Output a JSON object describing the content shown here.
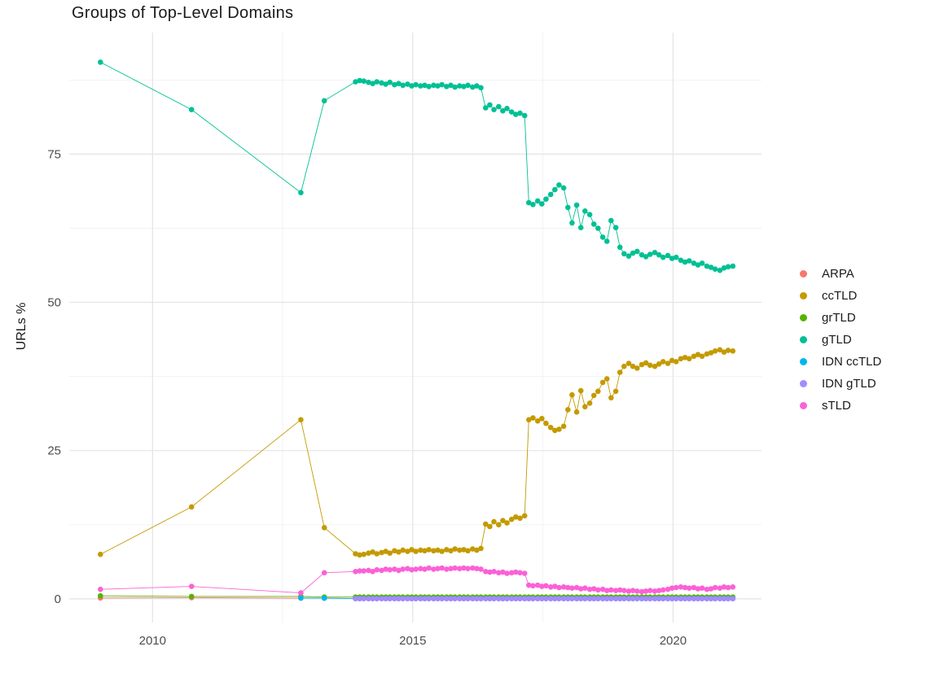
{
  "chart_data": {
    "type": "line",
    "title": "Groups of Top-Level Domains",
    "xlabel": "",
    "ylabel": "URLs %",
    "xlim": [
      2008.4,
      2021.7
    ],
    "ylim": [
      -4,
      95.5
    ],
    "xticks": [
      2010,
      2015,
      2020
    ],
    "yticks": [
      0,
      25,
      50,
      75
    ],
    "xticks_minor": [
      2012.5,
      2017.5
    ],
    "yticks_minor": [
      12.5,
      37.5,
      62.5,
      87.5
    ],
    "grid": true,
    "legend_position": "right",
    "x_dense": [
      2013.9,
      2013.98,
      2014.06,
      2014.15,
      2014.23,
      2014.31,
      2014.4,
      2014.48,
      2014.56,
      2014.65,
      2014.73,
      2014.81,
      2014.9,
      2014.98,
      2015.06,
      2015.15,
      2015.23,
      2015.31,
      2015.4,
      2015.48,
      2015.56,
      2015.65,
      2015.73,
      2015.81,
      2015.9,
      2015.98,
      2016.06,
      2016.15,
      2016.23,
      2016.31,
      2016.4,
      2016.48,
      2016.56,
      2016.65,
      2016.73,
      2016.81,
      2016.9,
      2016.98,
      2017.06,
      2017.15,
      2017.23,
      2017.31,
      2017.4,
      2017.48,
      2017.56,
      2017.65,
      2017.73,
      2017.81,
      2017.9,
      2017.98,
      2018.06,
      2018.15,
      2018.23,
      2018.31,
      2018.4,
      2018.48,
      2018.56,
      2018.65,
      2018.73,
      2018.81,
      2018.9,
      2018.98,
      2019.06,
      2019.15,
      2019.23,
      2019.31,
      2019.4,
      2019.48,
      2019.56,
      2019.65,
      2019.73,
      2019.81,
      2019.9,
      2019.98,
      2020.06,
      2020.15,
      2020.23,
      2020.31,
      2020.4,
      2020.48,
      2020.56,
      2020.65,
      2020.73,
      2020.81,
      2020.9,
      2020.98,
      2021.06,
      2021.15
    ],
    "series": [
      {
        "name": "ARPA",
        "color": "#F8766D",
        "sparse": [
          [
            2009.0,
            0.15
          ],
          [
            2010.75,
            0.2
          ],
          [
            2012.85,
            0.1
          ],
          [
            2013.3,
            0.1
          ]
        ],
        "dense_const": 0.06
      },
      {
        "name": "ccTLD",
        "color": "#C49A00",
        "sparse": [
          [
            2009.0,
            7.5
          ],
          [
            2010.75,
            15.5
          ],
          [
            2012.85,
            30.2
          ],
          [
            2013.3,
            12.0
          ]
        ],
        "dense": [
          7.6,
          7.4,
          7.5,
          7.7,
          7.9,
          7.6,
          7.8,
          8.0,
          7.7,
          8.1,
          7.9,
          8.2,
          8.0,
          8.3,
          8.0,
          8.2,
          8.1,
          8.3,
          8.1,
          8.2,
          8.0,
          8.3,
          8.1,
          8.4,
          8.2,
          8.3,
          8.1,
          8.4,
          8.2,
          8.5,
          12.6,
          12.2,
          13.0,
          12.5,
          13.2,
          12.8,
          13.4,
          13.8,
          13.6,
          14.0,
          30.2,
          30.5,
          30.0,
          30.4,
          29.6,
          28.9,
          28.4,
          28.6,
          29.1,
          31.9,
          34.4,
          31.5,
          35.1,
          32.4,
          33.0,
          34.3,
          35.0,
          36.5,
          37.1,
          33.9,
          35.0,
          38.2,
          39.2,
          39.7,
          39.2,
          38.9,
          39.5,
          39.8,
          39.4,
          39.2,
          39.6,
          40.0,
          39.7,
          40.2,
          40.0,
          40.5,
          40.7,
          40.5,
          40.9,
          41.2,
          40.9,
          41.3,
          41.5,
          41.8,
          42.0,
          41.6,
          41.9,
          41.8
        ]
      },
      {
        "name": "grTLD",
        "color": "#53B400",
        "sparse": [
          [
            2009.0,
            0.5
          ],
          [
            2010.75,
            0.4
          ],
          [
            2012.85,
            0.4
          ],
          [
            2013.3,
            0.3
          ]
        ],
        "dense_const": 0.3
      },
      {
        "name": "gTLD",
        "color": "#00C094",
        "sparse": [
          [
            2009.0,
            90.5
          ],
          [
            2010.75,
            82.5
          ],
          [
            2012.85,
            68.5
          ],
          [
            2013.3,
            84.0
          ]
        ],
        "dense": [
          87.2,
          87.4,
          87.3,
          87.1,
          86.9,
          87.2,
          87.0,
          86.8,
          87.1,
          86.7,
          86.9,
          86.6,
          86.8,
          86.5,
          86.7,
          86.5,
          86.6,
          86.4,
          86.6,
          86.5,
          86.7,
          86.4,
          86.6,
          86.3,
          86.5,
          86.4,
          86.6,
          86.3,
          86.5,
          86.2,
          82.8,
          83.3,
          82.5,
          83.0,
          82.3,
          82.7,
          82.1,
          81.7,
          81.9,
          81.5,
          66.8,
          66.5,
          67.1,
          66.6,
          67.4,
          68.2,
          69.0,
          69.8,
          69.3,
          66.0,
          63.4,
          66.4,
          62.6,
          65.4,
          64.8,
          63.2,
          62.5,
          61.0,
          60.3,
          63.8,
          62.6,
          59.3,
          58.2,
          57.8,
          58.3,
          58.6,
          58.0,
          57.7,
          58.1,
          58.4,
          58.0,
          57.6,
          57.9,
          57.4,
          57.6,
          57.1,
          56.8,
          57.0,
          56.6,
          56.3,
          56.6,
          56.1,
          55.9,
          55.6,
          55.4,
          55.8,
          56.0,
          56.1
        ]
      },
      {
        "name": "IDN ccTLD",
        "color": "#00B6EB",
        "sparse": [
          [
            2012.85,
            0.15
          ],
          [
            2013.3,
            0.1
          ]
        ],
        "dense_const": 0.04
      },
      {
        "name": "IDN gTLD",
        "color": "#A58AFF",
        "sparse": [],
        "dense_const": 0.02
      },
      {
        "name": "sTLD",
        "color": "#FB61D7",
        "sparse": [
          [
            2009.0,
            1.6
          ],
          [
            2010.75,
            2.1
          ],
          [
            2012.85,
            1.0
          ],
          [
            2013.3,
            4.4
          ]
        ],
        "dense": [
          4.6,
          4.7,
          4.7,
          4.8,
          4.6,
          4.9,
          4.8,
          5.0,
          4.9,
          5.0,
          4.8,
          5.0,
          5.1,
          4.9,
          5.0,
          5.1,
          5.0,
          5.2,
          5.0,
          5.1,
          5.2,
          5.0,
          5.1,
          5.2,
          5.1,
          5.2,
          5.1,
          5.2,
          5.1,
          5.0,
          4.6,
          4.5,
          4.6,
          4.4,
          4.5,
          4.3,
          4.4,
          4.5,
          4.4,
          4.3,
          2.3,
          2.2,
          2.3,
          2.1,
          2.2,
          2.0,
          2.1,
          1.9,
          2.0,
          1.9,
          1.8,
          1.9,
          1.7,
          1.8,
          1.6,
          1.7,
          1.5,
          1.6,
          1.4,
          1.5,
          1.4,
          1.5,
          1.4,
          1.3,
          1.4,
          1.3,
          1.2,
          1.3,
          1.4,
          1.3,
          1.4,
          1.5,
          1.6,
          1.8,
          1.9,
          2.0,
          1.9,
          1.8,
          1.9,
          1.7,
          1.8,
          1.6,
          1.7,
          1.9,
          1.8,
          2.0,
          1.9,
          2.0
        ]
      }
    ]
  }
}
